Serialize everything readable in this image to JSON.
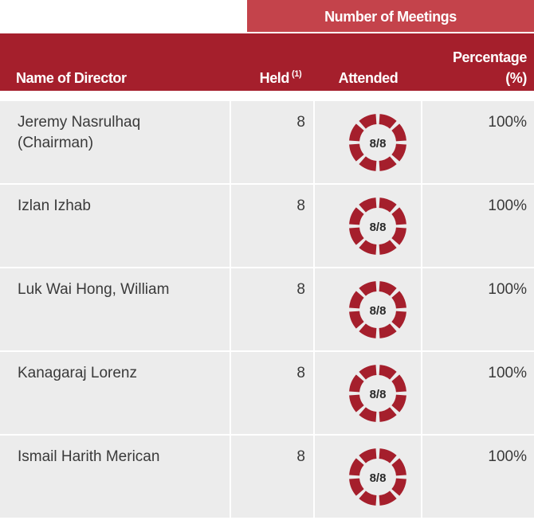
{
  "table": {
    "group_header": "Number of Meetings",
    "columns": {
      "name": "Name of Director",
      "held": "Held",
      "held_note": "(1)",
      "attended": "Attended",
      "percentage_line1": "Percentage",
      "percentage_line2": "(%)"
    },
    "rows": [
      {
        "name": [
          "Jeremy Nasrulhaq",
          "(Chairman)"
        ],
        "held": 8,
        "attended": "8/8",
        "percentage": "100%"
      },
      {
        "name": [
          "Izlan Izhab"
        ],
        "held": 8,
        "attended": "8/8",
        "percentage": "100%"
      },
      {
        "name": [
          "Luk Wai Hong, William"
        ],
        "held": 8,
        "attended": "8/8",
        "percentage": "100%"
      },
      {
        "name": [
          "Kanagaraj Lorenz"
        ],
        "held": 8,
        "attended": "8/8",
        "percentage": "100%"
      },
      {
        "name": [
          "Ismail Harith Merican"
        ],
        "held": 8,
        "attended": "8/8",
        "percentage": "100%"
      }
    ]
  }
}
